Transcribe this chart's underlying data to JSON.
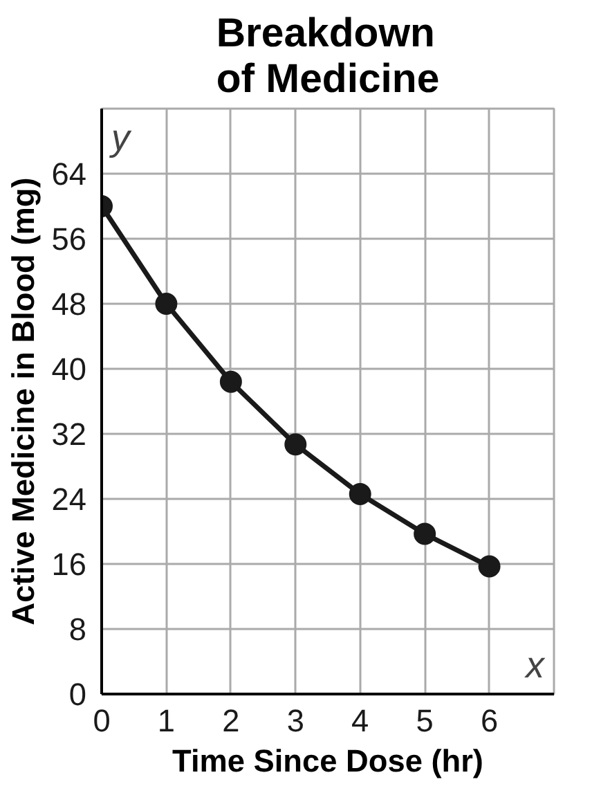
{
  "chart_data": {
    "type": "line",
    "title": "Breakdown\nof Medicine",
    "xlabel": "Time Since Dose (hr)",
    "ylabel": "Active Medicine in Blood (mg)",
    "x": [
      0,
      1,
      2,
      3,
      4,
      5,
      6
    ],
    "series": [
      {
        "color": "#1a1a1a",
        "values": [
          60,
          48,
          38.4,
          30.7,
          24.6,
          19.7,
          15.7
        ]
      }
    ],
    "xlim": [
      0,
      7
    ],
    "xticks": [
      0,
      1,
      2,
      3,
      4,
      5,
      6
    ],
    "ylim": [
      0,
      72
    ],
    "yticks": [
      0,
      8,
      16,
      24,
      32,
      40,
      48,
      56,
      64
    ],
    "annotations": [
      "y",
      "x"
    ],
    "grid": true,
    "marker": "circle",
    "line_style": "solid"
  }
}
